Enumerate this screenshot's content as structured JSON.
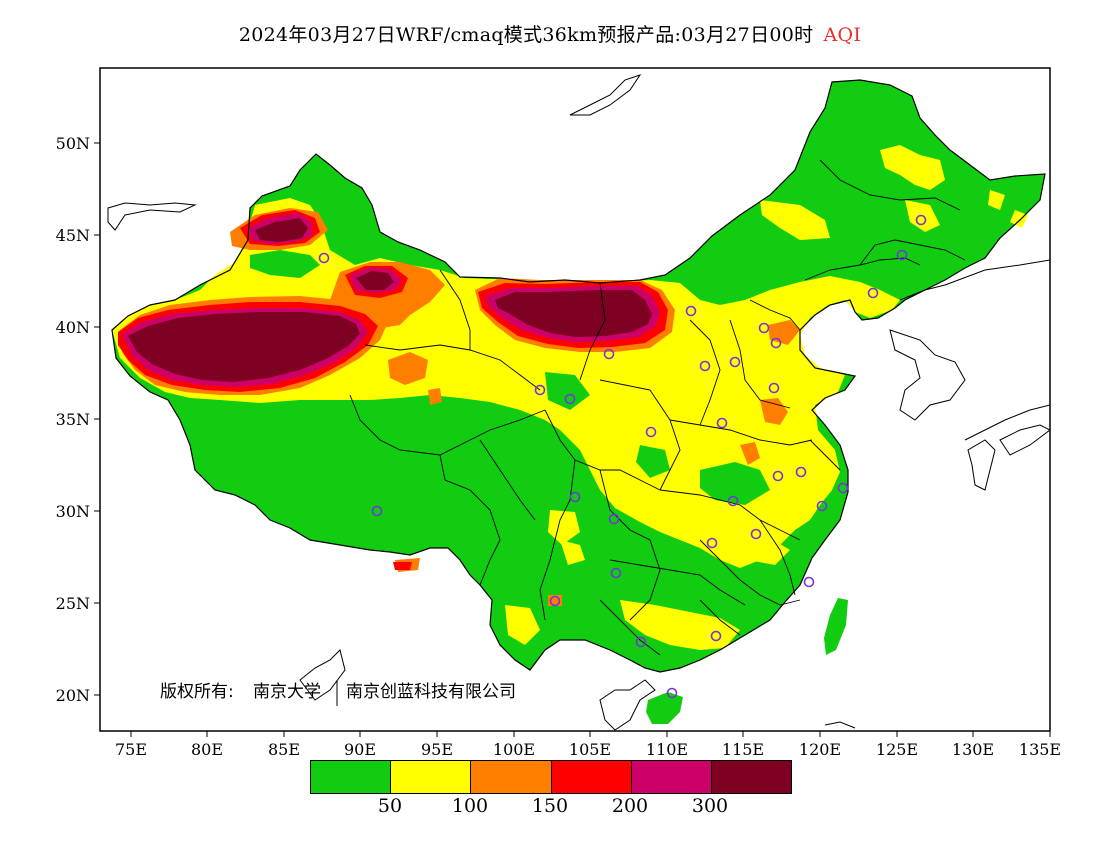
{
  "title": {
    "text": "2024年03月27日WRF/cmaq模式36km预报产品:03月27日00时",
    "variable": "AQI"
  },
  "axes": {
    "lat_labels": [
      "50N",
      "45N",
      "40N",
      "35N",
      "30N",
      "25N",
      "20N"
    ],
    "lon_labels": [
      "75E",
      "80E",
      "85E",
      "90E",
      "95E",
      "100E",
      "105E",
      "110E",
      "115E",
      "120E",
      "125E",
      "130E",
      "135E"
    ],
    "lon_range": [
      73,
      135
    ],
    "lat_range": [
      18,
      54
    ]
  },
  "copyright": {
    "owner_label": "版权所有:",
    "owner1": "南京大学",
    "owner2": "南京创蓝科技有限公司"
  },
  "legend": {
    "colors": [
      "#11cc11",
      "#ffff00",
      "#ff7e00",
      "#ff0000",
      "#cc0066",
      "#7e0023"
    ],
    "labels": [
      "50",
      "100",
      "150",
      "200",
      "300"
    ]
  }
}
